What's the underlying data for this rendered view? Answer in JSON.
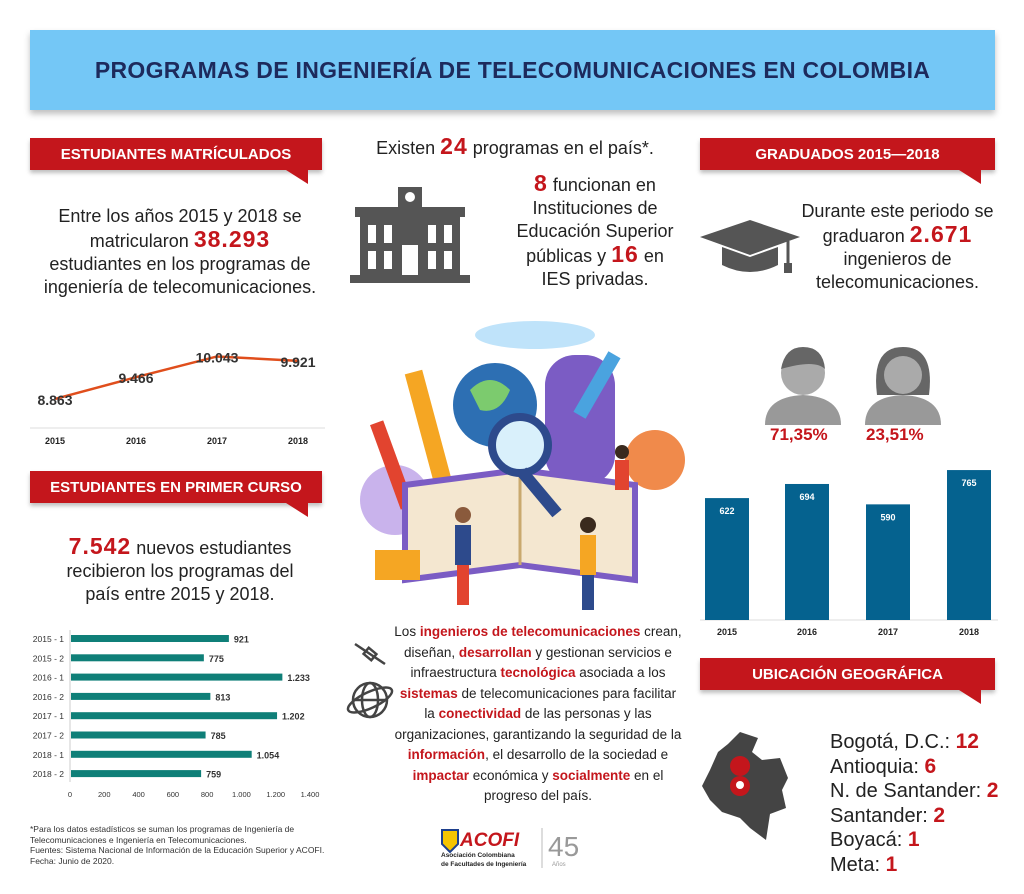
{
  "title": "PROGRAMAS DE INGENIERÍA DE TELECOMUNICACIONES EN COLOMBIA",
  "left": {
    "section1_label": "ESTUDIANTES MATRÍCULADOS",
    "section1_text": [
      "Entre los años 2015 y 2018 se",
      "matricularon",
      "38.293",
      "estudiantes en los programas de",
      "ingeniería de telecomunicaciones."
    ],
    "section2_label": "ESTUDIANTES EN PRIMER CURSO",
    "section2_text": [
      "7.542",
      "nuevos estudiantes",
      "recibieron los programas del",
      "país entre 2015 y 2018."
    ],
    "footnote": [
      "*Para los datos estadísticos se suman los programas de Ingeniería de",
      "Telecomunicaciones e Ingeniería en Telecomunicaciones.",
      "Fuentes: Sistema Nacional de Información de la Educación Superior y ACOFI.",
      "Fecha: Junio de 2020."
    ]
  },
  "center": {
    "programs": [
      "Existen",
      "24",
      "programas en el país*."
    ],
    "ies": [
      "8",
      "funcionan en",
      "Instituciones de",
      "Educación Superior",
      "públicas y",
      "16",
      "en",
      "IES privadas."
    ],
    "paragraph": [
      {
        "t": "Los ",
        "b": false
      },
      {
        "t": "ingenieros de telecomunicaciones",
        "b": true
      },
      {
        "t": " crean, diseñan, ",
        "b": false
      },
      {
        "t": "desarrollan",
        "b": true
      },
      {
        "t": " y gestionan servicios e infraestructura ",
        "b": false
      },
      {
        "t": "tecnológica",
        "b": true
      },
      {
        "t": " asociada a los ",
        "b": false
      },
      {
        "t": "sistemas",
        "b": true
      },
      {
        "t": " de telecomunicaciones para facilitar la ",
        "b": false
      },
      {
        "t": "conectividad",
        "b": true
      },
      {
        "t": " de las personas y las organizaciones, garantizando la seguridad de la ",
        "b": false
      },
      {
        "t": "información",
        "b": true
      },
      {
        "t": ", el desarrollo de la sociedad e ",
        "b": false
      },
      {
        "t": "impactar",
        "b": true
      },
      {
        "t": " económica y ",
        "b": false
      },
      {
        "t": "socialmente",
        "b": true
      },
      {
        "t": " en el progreso del país.",
        "b": false
      }
    ],
    "logo": {
      "name": "ACOFI",
      "sub1": "Asociación Colombiana",
      "sub2": "de Facultades de Ingeniería",
      "anniv": "45",
      "anniv_sub": "Años"
    }
  },
  "right": {
    "section1_label": "GRADUADOS 2015—2018",
    "section1_text": [
      "Durante este periodo  se",
      "graduaron",
      "2.671",
      "ingenieros de",
      "telecomunicaciones."
    ],
    "male_pct": "71,35%",
    "female_pct": "23,51%",
    "section2_label": "UBICACIÓN GEOGRÁFICA",
    "locations": [
      {
        "name": "Bogotá, D.C.:",
        "count": "12"
      },
      {
        "name": "Antioquia:",
        "count": "6"
      },
      {
        "name": "N. de Santander:",
        "count": "2"
      },
      {
        "name": "Santander:",
        "count": "2"
      },
      {
        "name": "Boyacá:",
        "count": "1"
      },
      {
        "name": "Meta:",
        "count": "1"
      }
    ]
  },
  "colors": {
    "banner": "#74c7f6",
    "title": "#1d2a5c",
    "accent_red": "#c4161c",
    "line": "#e04e1c",
    "teal_bar": "#0f7f78",
    "blue_bar": "#05628f"
  },
  "chart_data": [
    {
      "type": "line",
      "categories": [
        "2015",
        "2016",
        "2017",
        "2018"
      ],
      "values": [
        8863,
        9466,
        10043,
        9921
      ],
      "labels": [
        "8.863",
        "9.466",
        "10.043",
        "9.921"
      ],
      "grid": false
    },
    {
      "type": "bar",
      "orientation": "horizontal",
      "categories": [
        "2015 - 1",
        "2015 - 2",
        "2016 - 1",
        "2016 - 2",
        "2017 - 1",
        "2017 - 2",
        "2018 - 1",
        "2018 - 2"
      ],
      "values": [
        921,
        775,
        1233,
        813,
        1202,
        785,
        1054,
        759
      ],
      "labels": [
        "921",
        "775",
        "1.233",
        "813",
        "1.202",
        "785",
        "1.054",
        "759"
      ],
      "xlim": [
        0,
        1400
      ],
      "xticks": [
        "0",
        "200",
        "400",
        "600",
        "800",
        "1.000",
        "1.200",
        "1.400"
      ],
      "grid": false
    },
    {
      "type": "bar",
      "categories": [
        "2015",
        "2016",
        "2017",
        "2018"
      ],
      "values": [
        622,
        694,
        590,
        765
      ],
      "labels": [
        "622",
        "694",
        "590",
        "765"
      ],
      "grid": false
    }
  ]
}
